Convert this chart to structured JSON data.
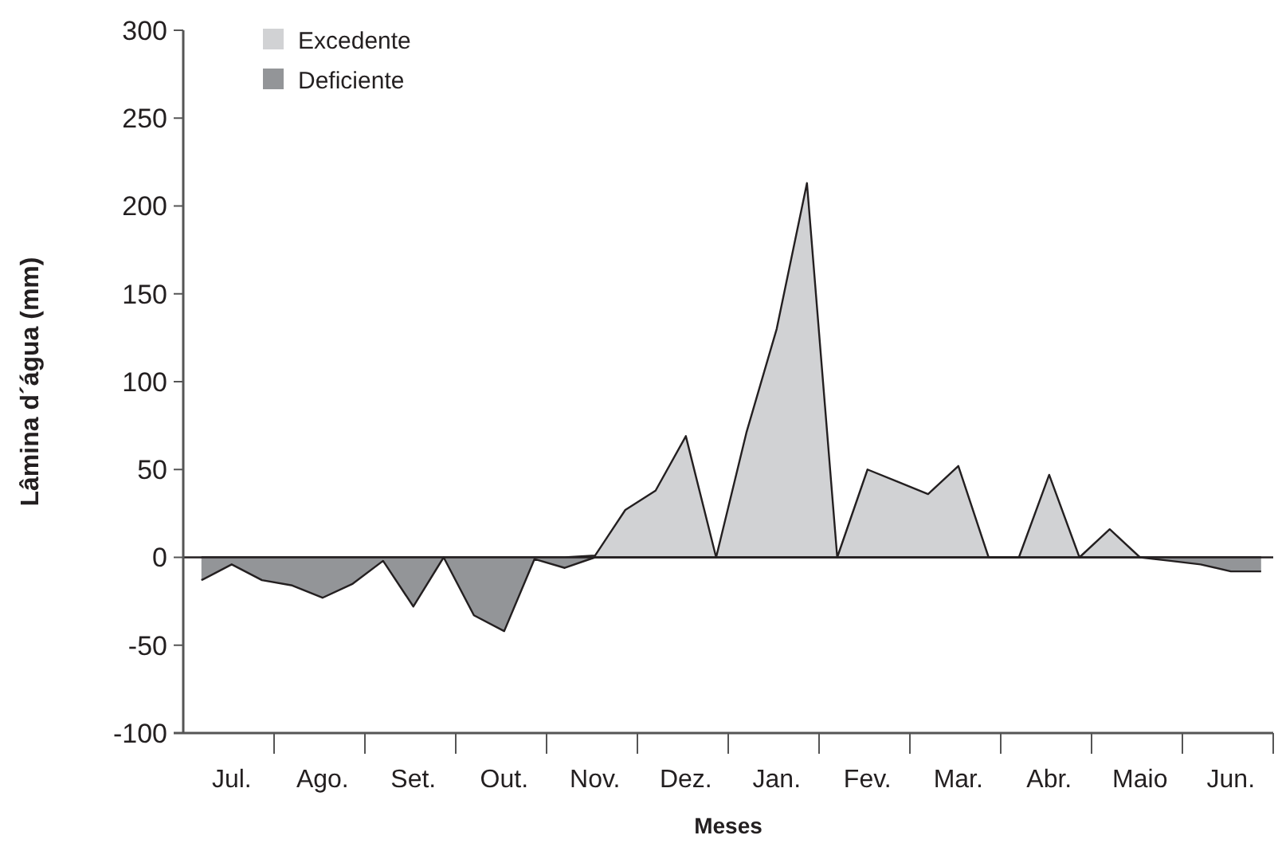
{
  "chart_data": {
    "type": "area",
    "xlabel": "Meses",
    "ylabel": "Lâmina d´água (mm)",
    "categories": [
      null,
      "Jul.",
      null,
      null,
      "Ago.",
      null,
      null,
      "Set.",
      null,
      null,
      "Out.",
      null,
      null,
      "Nov.",
      null,
      null,
      "Dez.",
      null,
      null,
      "Jan.",
      null,
      null,
      "Fev.",
      null,
      null,
      "Mar.",
      null,
      null,
      "Abr.",
      null,
      null,
      "Maio",
      null,
      null,
      "Jun.",
      null
    ],
    "series": [
      {
        "name": "Excedente",
        "color": "#d1d2d4",
        "values": [
          0,
          0,
          0,
          0,
          0,
          0,
          0,
          0,
          0,
          0,
          0,
          0,
          0,
          1,
          27,
          38,
          69,
          0,
          71,
          130,
          213,
          0,
          50,
          43,
          36,
          52,
          0,
          0,
          47,
          0,
          16,
          0,
          0,
          0,
          0,
          0
        ]
      },
      {
        "name": "Deficiente",
        "color": "#939598",
        "values": [
          -13,
          -4,
          -13,
          -16,
          -23,
          -15,
          -2,
          -28,
          0,
          -33,
          -42,
          -1,
          -6,
          0,
          0,
          0,
          0,
          0,
          0,
          0,
          0,
          0,
          0,
          0,
          0,
          0,
          0,
          0,
          0,
          0,
          0,
          0,
          -2,
          -4,
          -8,
          -8
        ]
      }
    ],
    "ylim": [
      -100,
      300
    ],
    "yticks": [
      {
        "value": -100,
        "label": "-100"
      },
      {
        "value": -50,
        "label": "-50"
      },
      0,
      50,
      100,
      150,
      200,
      250,
      300
    ],
    "legend": "top left"
  }
}
